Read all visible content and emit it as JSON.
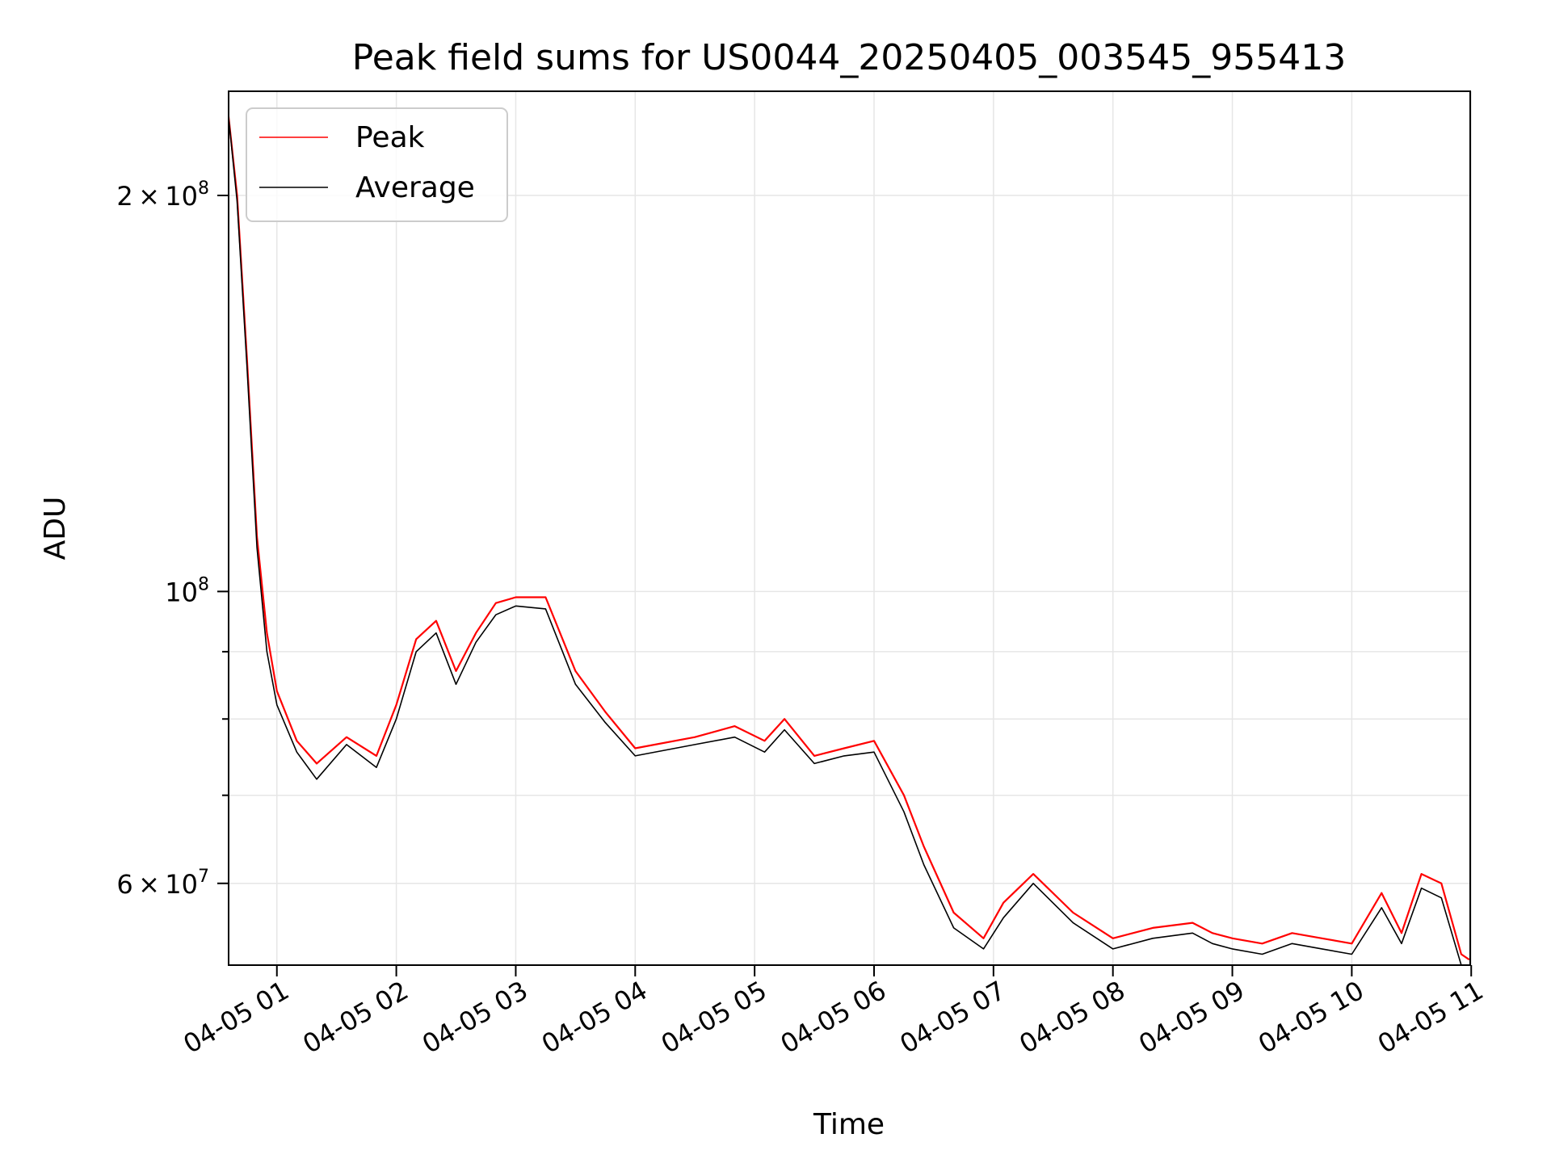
{
  "chart_data": {
    "type": "line",
    "title": "Peak field sums for US0044_20250405_003545_955413",
    "xlabel": "Time",
    "ylabel": "ADU",
    "y_scale": "log",
    "ylim": [
      52000000,
      240000000
    ],
    "xlim": [
      "2025-04-05 00:35:45",
      "2025-04-05 10:59:30"
    ],
    "grid": true,
    "legend_position": "top-left",
    "x_ticks": [
      {
        "value": "2025-04-05 01:00",
        "label": "04-05 01"
      },
      {
        "value": "2025-04-05 02:00",
        "label": "04-05 02"
      },
      {
        "value": "2025-04-05 03:00",
        "label": "04-05 03"
      },
      {
        "value": "2025-04-05 04:00",
        "label": "04-05 04"
      },
      {
        "value": "2025-04-05 05:00",
        "label": "04-05 05"
      },
      {
        "value": "2025-04-05 06:00",
        "label": "04-05 06"
      },
      {
        "value": "2025-04-05 07:00",
        "label": "04-05 07"
      },
      {
        "value": "2025-04-05 08:00",
        "label": "04-05 08"
      },
      {
        "value": "2025-04-05 09:00",
        "label": "04-05 09"
      },
      {
        "value": "2025-04-05 10:00",
        "label": "04-05 10"
      },
      {
        "value": "2025-04-05 11:00",
        "label": "04-05 11"
      }
    ],
    "y_major_ticks": [
      {
        "value": 60000000,
        "mantissa": "6",
        "exponent": "7"
      },
      {
        "value": 100000000,
        "mantissa": "",
        "exponent": "8"
      },
      {
        "value": 200000000,
        "mantissa": "2",
        "exponent": "8"
      }
    ],
    "y_minor_ticks": [
      70000000,
      80000000,
      90000000
    ],
    "series": [
      {
        "name": "Peak",
        "color": "#ff0000",
        "x": [
          "2025-04-05 00:35",
          "2025-04-05 00:40",
          "2025-04-05 00:45",
          "2025-04-05 00:50",
          "2025-04-05 00:55",
          "2025-04-05 01:00",
          "2025-04-05 01:10",
          "2025-04-05 01:20",
          "2025-04-05 01:35",
          "2025-04-05 01:50",
          "2025-04-05 02:00",
          "2025-04-05 02:10",
          "2025-04-05 02:20",
          "2025-04-05 02:30",
          "2025-04-05 02:40",
          "2025-04-05 02:50",
          "2025-04-05 03:00",
          "2025-04-05 03:15",
          "2025-04-05 03:30",
          "2025-04-05 03:45",
          "2025-04-05 04:00",
          "2025-04-05 04:30",
          "2025-04-05 04:50",
          "2025-04-05 05:05",
          "2025-04-05 05:15",
          "2025-04-05 05:30",
          "2025-04-05 05:45",
          "2025-04-05 06:00",
          "2025-04-05 06:15",
          "2025-04-05 06:25",
          "2025-04-05 06:40",
          "2025-04-05 06:55",
          "2025-04-05 07:05",
          "2025-04-05 07:20",
          "2025-04-05 07:40",
          "2025-04-05 08:00",
          "2025-04-05 08:20",
          "2025-04-05 08:40",
          "2025-04-05 08:50",
          "2025-04-05 09:00",
          "2025-04-05 09:15",
          "2025-04-05 09:30",
          "2025-04-05 09:45",
          "2025-04-05 10:00",
          "2025-04-05 10:15",
          "2025-04-05 10:25",
          "2025-04-05 10:35",
          "2025-04-05 10:45",
          "2025-04-05 10:55",
          "2025-04-05 10:59"
        ],
        "values": [
          235000000,
          200000000,
          150000000,
          110000000,
          93000000,
          84000000,
          77000000,
          74000000,
          77500000,
          75000000,
          82000000,
          92000000,
          95000000,
          87000000,
          93000000,
          98000000,
          99000000,
          99000000,
          87000000,
          81000000,
          76000000,
          77500000,
          79000000,
          77000000,
          80000000,
          75000000,
          76000000,
          77000000,
          70000000,
          64000000,
          57000000,
          54500000,
          58000000,
          61000000,
          57000000,
          54500000,
          55500000,
          56000000,
          55000000,
          54500000,
          54000000,
          55000000,
          54500000,
          54000000,
          59000000,
          55000000,
          61000000,
          60000000,
          53000000,
          52500000
        ]
      },
      {
        "name": "Average",
        "color": "#000000",
        "x": [
          "2025-04-05 00:35",
          "2025-04-05 00:40",
          "2025-04-05 00:45",
          "2025-04-05 00:50",
          "2025-04-05 00:55",
          "2025-04-05 01:00",
          "2025-04-05 01:10",
          "2025-04-05 01:20",
          "2025-04-05 01:35",
          "2025-04-05 01:50",
          "2025-04-05 02:00",
          "2025-04-05 02:10",
          "2025-04-05 02:20",
          "2025-04-05 02:30",
          "2025-04-05 02:40",
          "2025-04-05 02:50",
          "2025-04-05 03:00",
          "2025-04-05 03:15",
          "2025-04-05 03:30",
          "2025-04-05 03:45",
          "2025-04-05 04:00",
          "2025-04-05 04:30",
          "2025-04-05 04:50",
          "2025-04-05 05:05",
          "2025-04-05 05:15",
          "2025-04-05 05:30",
          "2025-04-05 05:45",
          "2025-04-05 06:00",
          "2025-04-05 06:15",
          "2025-04-05 06:25",
          "2025-04-05 06:40",
          "2025-04-05 06:55",
          "2025-04-05 07:05",
          "2025-04-05 07:20",
          "2025-04-05 07:40",
          "2025-04-05 08:00",
          "2025-04-05 08:20",
          "2025-04-05 08:40",
          "2025-04-05 08:50",
          "2025-04-05 09:00",
          "2025-04-05 09:15",
          "2025-04-05 09:30",
          "2025-04-05 09:45",
          "2025-04-05 10:00",
          "2025-04-05 10:15",
          "2025-04-05 10:25",
          "2025-04-05 10:35",
          "2025-04-05 10:45",
          "2025-04-05 10:55",
          "2025-04-05 10:59"
        ],
        "values": [
          235000000,
          198000000,
          148000000,
          108000000,
          90000000,
          82000000,
          75500000,
          72000000,
          76500000,
          73500000,
          80000000,
          90000000,
          93000000,
          85000000,
          91500000,
          96000000,
          97500000,
          97000000,
          85000000,
          79500000,
          75000000,
          76500000,
          77500000,
          75500000,
          78500000,
          74000000,
          75000000,
          75500000,
          68000000,
          62000000,
          55500000,
          53500000,
          56500000,
          60000000,
          56000000,
          53500000,
          54500000,
          55000000,
          54000000,
          53500000,
          53000000,
          54000000,
          53500000,
          53000000,
          57500000,
          54000000,
          59500000,
          58500000,
          52000000,
          52000000
        ]
      }
    ]
  }
}
